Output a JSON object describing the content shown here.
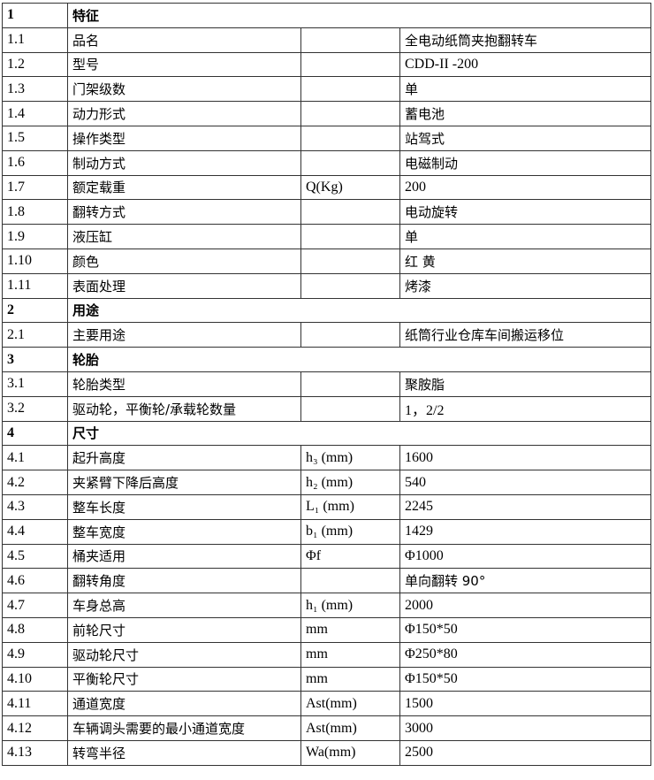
{
  "rows": [
    {
      "no": "1",
      "name": "特征",
      "section": true
    },
    {
      "no": "1.1",
      "name": "品名",
      "unit": "",
      "value": "全电动纸筒夹抱翻转车"
    },
    {
      "no": "1.2",
      "name": "型号",
      "unit": "",
      "value": "CDD-II -200"
    },
    {
      "no": "1.3",
      "name": "门架级数",
      "unit": "",
      "value": "单"
    },
    {
      "no": "1.4",
      "name": "动力形式",
      "unit": "",
      "value": "蓄电池"
    },
    {
      "no": "1.5",
      "name": "操作类型",
      "unit": "",
      "value": "站驾式"
    },
    {
      "no": "1.6",
      "name": "制动方式",
      "unit": "",
      "value": "电磁制动"
    },
    {
      "no": "1.7",
      "name": "额定载重",
      "unit": "Q(Kg)",
      "value": "200"
    },
    {
      "no": "1.8",
      "name": "翻转方式",
      "unit": "",
      "value": "电动旋转"
    },
    {
      "no": "1.9",
      "name": "液压缸",
      "unit": "",
      "value": "单"
    },
    {
      "no": "1.10",
      "name": "颜色",
      "unit": "",
      "value": "红  黄"
    },
    {
      "no": "1.11",
      "name": "表面处理",
      "unit": "",
      "value": "烤漆"
    },
    {
      "no": "2",
      "name": "用途",
      "section": true
    },
    {
      "no": "2.1",
      "name": "主要用途",
      "unit": "",
      "value": "纸筒行业仓库车间搬运移位"
    },
    {
      "no": "3",
      "name": "轮胎",
      "section": true
    },
    {
      "no": "3.1",
      "name": "轮胎类型",
      "unit": "",
      "value": "聚胺脂"
    },
    {
      "no": "3.2",
      "name": "驱动轮，平衡轮/承载轮数量",
      "unit": "",
      "value": "1，2/2"
    },
    {
      "no": "4",
      "name": "尺寸",
      "section": true
    },
    {
      "no": "4.1",
      "name": "起升高度",
      "unit": "h₃ (mm)",
      "value": "1600"
    },
    {
      "no": "4.2",
      "name": "夹紧臂下降后高度",
      "unit": "h₂ (mm)",
      "value": "540"
    },
    {
      "no": "4.3",
      "name": "整车长度",
      "unit": "L₁ (mm)",
      "value": "2245"
    },
    {
      "no": "4.4",
      "name": "整车宽度",
      "unit": "b₁ (mm)",
      "value": "1429"
    },
    {
      "no": "4.5",
      "name": "桶夹适用",
      "unit": "Φf",
      "value": "Φ1000"
    },
    {
      "no": "4.6",
      "name": "翻转角度",
      "unit": "",
      "value": "单向翻转 90°"
    },
    {
      "no": "4.7",
      "name": "车身总高",
      "unit": "h₁ (mm)",
      "value": "2000"
    },
    {
      "no": "4.8",
      "name": "前轮尺寸",
      "unit": "mm",
      "value": "Φ150*50"
    },
    {
      "no": "4.9",
      "name": "驱动轮尺寸",
      "unit": "mm",
      "value": "Φ250*80"
    },
    {
      "no": "4.10",
      "name": "平衡轮尺寸",
      "unit": "mm",
      "value": "Φ150*50"
    },
    {
      "no": "4.11",
      "name": "通道宽度",
      "unit": "Ast(mm)",
      "value": "1500"
    },
    {
      "no": "4.12",
      "name": "车辆调头需要的最小通道宽度",
      "unit": "Ast(mm)",
      "value": "3000"
    },
    {
      "no": "4.13",
      "name": "转弯半径",
      "unit": "Wa(mm)",
      "value": "2500"
    }
  ]
}
